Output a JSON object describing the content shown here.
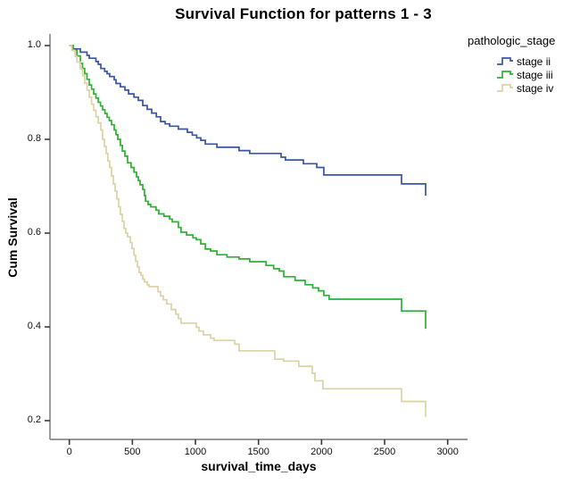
{
  "title": "Survival Function for patterns 1 - 3",
  "legend": {
    "title": "pathologic_stage",
    "items": [
      {
        "label": "stage ii",
        "color": "#3A55A4"
      },
      {
        "label": "stage iii",
        "color": "#2EB135"
      },
      {
        "label": "stage iv",
        "color": "#DCD4A4"
      }
    ]
  },
  "colors": {
    "axis_line": "#8A8A8A",
    "tick_mark": "#3A3A3A",
    "text": "#000000",
    "background": "#FFFFFF"
  },
  "chart_data": {
    "type": "line",
    "subtype": "kaplan-meier-step",
    "title": "Survival Function for patterns 1 - 3",
    "xlabel": "survival_time_days",
    "ylabel": "Cum Survival",
    "legend_title": "pathologic_stage",
    "legend_position": "top-right",
    "grid": false,
    "xlim": [
      -153.5,
      3157.8
    ],
    "ylim": [
      0.16,
      1.0248
    ],
    "x_ticks": [
      {
        "v": 0,
        "label": "0"
      },
      {
        "v": 500,
        "label": "500"
      },
      {
        "v": 1000,
        "label": "1000"
      },
      {
        "v": 1500,
        "label": "1500"
      },
      {
        "v": 2000,
        "label": "2000"
      },
      {
        "v": 2500,
        "label": "2500"
      },
      {
        "v": 3000,
        "label": "3000"
      }
    ],
    "y_ticks": [
      {
        "v": 1.0,
        "label": "1.0"
      },
      {
        "v": 0.8,
        "label": "0.8"
      },
      {
        "v": 0.6,
        "label": "0.6"
      },
      {
        "v": 0.4,
        "label": "0.4"
      },
      {
        "v": 0.2,
        "label": "0.2"
      }
    ],
    "series": [
      {
        "name": "stage ii",
        "color": "#3A55A4",
        "start": [
          0,
          1.0
        ],
        "points": [
          [
            30,
            0.993
          ],
          [
            87,
            0.986
          ],
          [
            140,
            0.979
          ],
          [
            158,
            0.973
          ],
          [
            211,
            0.966
          ],
          [
            229,
            0.96
          ],
          [
            250,
            0.951
          ],
          [
            280,
            0.945
          ],
          [
            299,
            0.94
          ],
          [
            320,
            0.934
          ],
          [
            356,
            0.927
          ],
          [
            370,
            0.919
          ],
          [
            405,
            0.912
          ],
          [
            441,
            0.905
          ],
          [
            470,
            0.897
          ],
          [
            512,
            0.89
          ],
          [
            547,
            0.883
          ],
          [
            582,
            0.872
          ],
          [
            618,
            0.864
          ],
          [
            653,
            0.856
          ],
          [
            690,
            0.848
          ],
          [
            724,
            0.838
          ],
          [
            760,
            0.833
          ],
          [
            795,
            0.828
          ],
          [
            865,
            0.822
          ],
          [
            936,
            0.815
          ],
          [
            975,
            0.809
          ],
          [
            1010,
            0.803
          ],
          [
            1042,
            0.798
          ],
          [
            1078,
            0.79
          ],
          [
            1170,
            0.783
          ],
          [
            1346,
            0.776
          ],
          [
            1431,
            0.77
          ],
          [
            1679,
            0.762
          ],
          [
            1714,
            0.756
          ],
          [
            1856,
            0.748
          ],
          [
            1962,
            0.74
          ],
          [
            2018,
            0.724
          ],
          [
            2634,
            0.705
          ],
          [
            2825,
            0.68
          ]
        ]
      },
      {
        "name": "stage iii",
        "color": "#2EB135",
        "start": [
          0,
          1.0
        ],
        "points": [
          [
            30,
            0.99
          ],
          [
            60,
            0.978
          ],
          [
            87,
            0.962
          ],
          [
            105,
            0.951
          ],
          [
            122,
            0.94
          ],
          [
            140,
            0.928
          ],
          [
            158,
            0.916
          ],
          [
            176,
            0.907
          ],
          [
            193,
            0.897
          ],
          [
            211,
            0.888
          ],
          [
            229,
            0.879
          ],
          [
            247,
            0.871
          ],
          [
            264,
            0.863
          ],
          [
            282,
            0.855
          ],
          [
            299,
            0.847
          ],
          [
            317,
            0.84
          ],
          [
            335,
            0.831
          ],
          [
            356,
            0.82
          ],
          [
            370,
            0.81
          ],
          [
            384,
            0.8
          ],
          [
            405,
            0.787
          ],
          [
            420,
            0.775
          ],
          [
            441,
            0.764
          ],
          [
            462,
            0.75
          ],
          [
            490,
            0.74
          ],
          [
            512,
            0.73
          ],
          [
            533,
            0.72
          ],
          [
            547,
            0.712
          ],
          [
            561,
            0.703
          ],
          [
            582,
            0.693
          ],
          [
            596,
            0.68
          ],
          [
            604,
            0.668
          ],
          [
            625,
            0.661
          ],
          [
            646,
            0.656
          ],
          [
            688,
            0.649
          ],
          [
            710,
            0.641
          ],
          [
            750,
            0.636
          ],
          [
            795,
            0.63
          ],
          [
            816,
            0.624
          ],
          [
            865,
            0.612
          ],
          [
            886,
            0.602
          ],
          [
            930,
            0.596
          ],
          [
            980,
            0.59
          ],
          [
            1007,
            0.586
          ],
          [
            1042,
            0.577
          ],
          [
            1078,
            0.566
          ],
          [
            1120,
            0.562
          ],
          [
            1170,
            0.554
          ],
          [
            1250,
            0.549
          ],
          [
            1346,
            0.545
          ],
          [
            1431,
            0.539
          ],
          [
            1560,
            0.531
          ],
          [
            1620,
            0.524
          ],
          [
            1665,
            0.519
          ],
          [
            1700,
            0.507
          ],
          [
            1790,
            0.499
          ],
          [
            1870,
            0.49
          ],
          [
            1930,
            0.483
          ],
          [
            1976,
            0.477
          ],
          [
            2018,
            0.467
          ],
          [
            2060,
            0.459
          ],
          [
            2634,
            0.434
          ],
          [
            2825,
            0.396
          ]
        ]
      },
      {
        "name": "stage iv",
        "color": "#DCD4A4",
        "start": [
          0,
          1.0
        ],
        "points": [
          [
            20,
            0.99
          ],
          [
            45,
            0.977
          ],
          [
            60,
            0.965
          ],
          [
            87,
            0.95
          ],
          [
            105,
            0.936
          ],
          [
            122,
            0.92
          ],
          [
            140,
            0.905
          ],
          [
            158,
            0.89
          ],
          [
            176,
            0.875
          ],
          [
            193,
            0.862
          ],
          [
            211,
            0.848
          ],
          [
            229,
            0.835
          ],
          [
            250,
            0.82
          ],
          [
            264,
            0.8
          ],
          [
            278,
            0.785
          ],
          [
            292,
            0.77
          ],
          [
            306,
            0.754
          ],
          [
            320,
            0.74
          ],
          [
            335,
            0.722
          ],
          [
            349,
            0.705
          ],
          [
            363,
            0.69
          ],
          [
            377,
            0.673
          ],
          [
            391,
            0.656
          ],
          [
            405,
            0.64
          ],
          [
            420,
            0.625
          ],
          [
            434,
            0.61
          ],
          [
            448,
            0.6
          ],
          [
            462,
            0.592
          ],
          [
            483,
            0.58
          ],
          [
            497,
            0.567
          ],
          [
            512,
            0.553
          ],
          [
            526,
            0.54
          ],
          [
            540,
            0.528
          ],
          [
            554,
            0.516
          ],
          [
            568,
            0.51
          ],
          [
            582,
            0.502
          ],
          [
            596,
            0.496
          ],
          [
            618,
            0.49
          ],
          [
            632,
            0.486
          ],
          [
            703,
            0.475
          ],
          [
            724,
            0.466
          ],
          [
            745,
            0.458
          ],
          [
            773,
            0.449
          ],
          [
            809,
            0.437
          ],
          [
            844,
            0.427
          ],
          [
            865,
            0.418
          ],
          [
            886,
            0.408
          ],
          [
            1007,
            0.399
          ],
          [
            1028,
            0.391
          ],
          [
            1063,
            0.383
          ],
          [
            1120,
            0.376
          ],
          [
            1148,
            0.371
          ],
          [
            1311,
            0.363
          ],
          [
            1346,
            0.349
          ],
          [
            1629,
            0.331
          ],
          [
            1700,
            0.327
          ],
          [
            1820,
            0.316
          ],
          [
            1926,
            0.301
          ],
          [
            1948,
            0.285
          ],
          [
            2011,
            0.268
          ],
          [
            2634,
            0.241
          ],
          [
            2825,
            0.208
          ]
        ]
      }
    ]
  }
}
